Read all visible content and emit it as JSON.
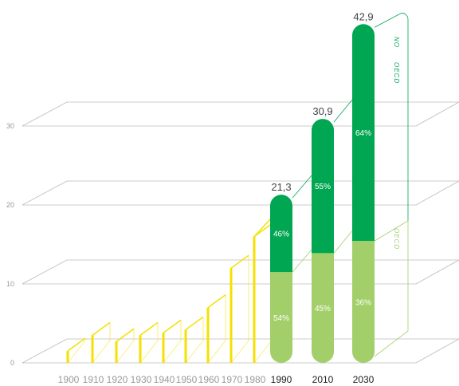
{
  "chart_data": {
    "type": "bar",
    "title": "",
    "xlabel": "",
    "ylabel": "",
    "ylim": [
      0,
      30
    ],
    "yticks": [
      "0",
      "10",
      "20",
      "30"
    ],
    "grid": true,
    "historical": {
      "categories": [
        "1900",
        "1910",
        "1920",
        "1930",
        "1940",
        "1950",
        "1960",
        "1970",
        "1980"
      ],
      "values": [
        1.5,
        3.5,
        2.7,
        3.5,
        3.8,
        4.2,
        7,
        12,
        16
      ],
      "color": "#f5e000"
    },
    "projection": {
      "categories": [
        "1990",
        "2010",
        "2030"
      ],
      "totals": [
        21.3,
        30.9,
        42.9
      ],
      "total_labels": [
        "21,3",
        "30,9",
        "42,9"
      ],
      "series": [
        {
          "name": "OECD",
          "values": [
            54,
            45,
            36
          ],
          "labels": [
            "54%",
            "45%",
            "36%"
          ],
          "color": "#a2cf69"
        },
        {
          "name": "NO OECD",
          "values": [
            46,
            55,
            64
          ],
          "labels": [
            "46%",
            "55%",
            "64%"
          ],
          "color": "#00a651"
        }
      ]
    },
    "vertical_labels": {
      "no_oecd": [
        "NO",
        "OECD"
      ],
      "oecd": "OECD"
    }
  }
}
